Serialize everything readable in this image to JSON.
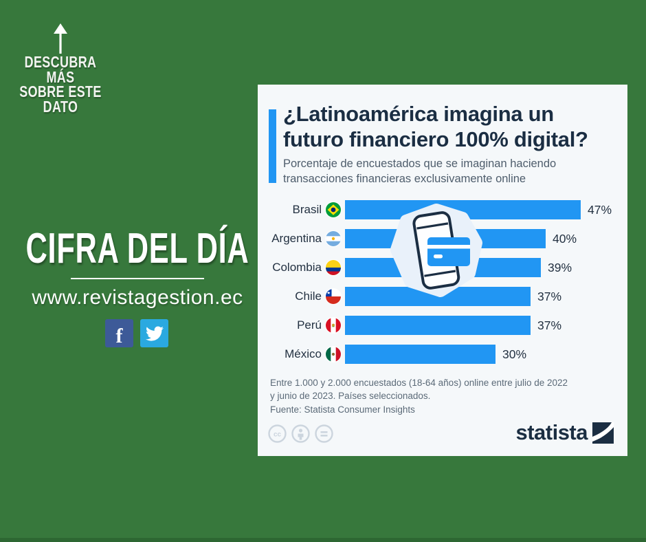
{
  "page": {
    "background_color": "#37783c",
    "accent_blue": "#2196f3",
    "navy": "#1b2e43"
  },
  "left_panel": {
    "discover_line1": "DESCUBRA MÁS",
    "discover_line2": "SOBRE ESTE",
    "discover_line3": "DATO",
    "headline": "CIFRA DEL DÍA",
    "website": "www.revistagestion.ec",
    "social": [
      {
        "name": "facebook",
        "color": "#3d5a98",
        "glyph": "f"
      },
      {
        "name": "twitter",
        "color": "#2aa9e0"
      }
    ]
  },
  "card": {
    "title_line1": "¿Latinoamérica imagina un",
    "title_line2": "futuro financiero 100% digital?",
    "subtitle": "Porcentaje de encuestados que se imaginan haciendo transacciones financieras exclusivamente online",
    "footnote_line1": "Entre 1.000 y 2.000 encuestados (18-64 años) online entre julio de 2022",
    "footnote_line2": "y junio de 2023. Países seleccionados.",
    "source": "Fuente: Statista Consumer Insights",
    "brand": "statista",
    "license_icons": [
      "cc",
      "attribution",
      "no-derivatives"
    ]
  },
  "chart_data": {
    "type": "bar",
    "orientation": "horizontal",
    "title": "¿Latinoamérica imagina un futuro financiero 100% digital?",
    "subtitle": "Porcentaje de encuestados que se imaginan haciendo transacciones financieras exclusivamente online",
    "categories": [
      "Brasil",
      "Argentina",
      "Colombia",
      "Chile",
      "Perú",
      "México"
    ],
    "values": [
      47,
      40,
      39,
      37,
      37,
      30
    ],
    "value_labels": [
      "47%",
      "40%",
      "39%",
      "37%",
      "37%",
      "30%"
    ],
    "bar_color": "#2196f3",
    "xlim": [
      0,
      50
    ],
    "grid": false,
    "legend": false
  }
}
